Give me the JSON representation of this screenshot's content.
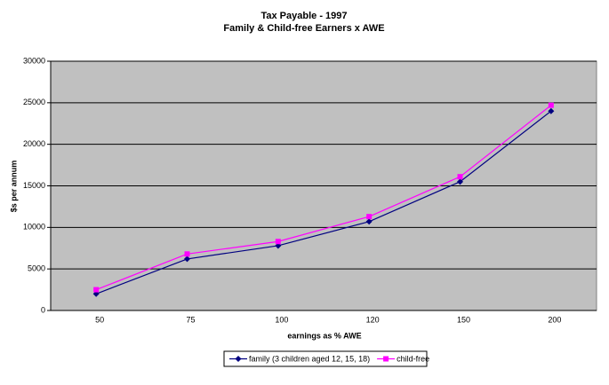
{
  "chart_data": {
    "type": "line",
    "title": "Tax Payable - 1997",
    "subtitle": "Family & Child-free Earners x AWE",
    "x_label": "earnings as % AWE",
    "y_label": "$s per annum",
    "categories": [
      "50",
      "75",
      "100",
      "120",
      "150",
      "200"
    ],
    "series": [
      {
        "name": "family (3 children aged 12, 15, 18)",
        "color": "#000080",
        "marker": "diamond",
        "values": [
          2000,
          6200,
          7800,
          10700,
          15500,
          24000
        ]
      },
      {
        "name": "child-free",
        "color": "#ff00ff",
        "marker": "square",
        "values": [
          2500,
          6800,
          8300,
          11300,
          16100,
          24700
        ]
      }
    ],
    "ylim": [
      0,
      30000
    ],
    "yticks": [
      0,
      5000,
      10000,
      15000,
      20000,
      25000,
      30000
    ],
    "grid": true,
    "plot_background": "#c0c0c0",
    "legend": "bottom"
  }
}
